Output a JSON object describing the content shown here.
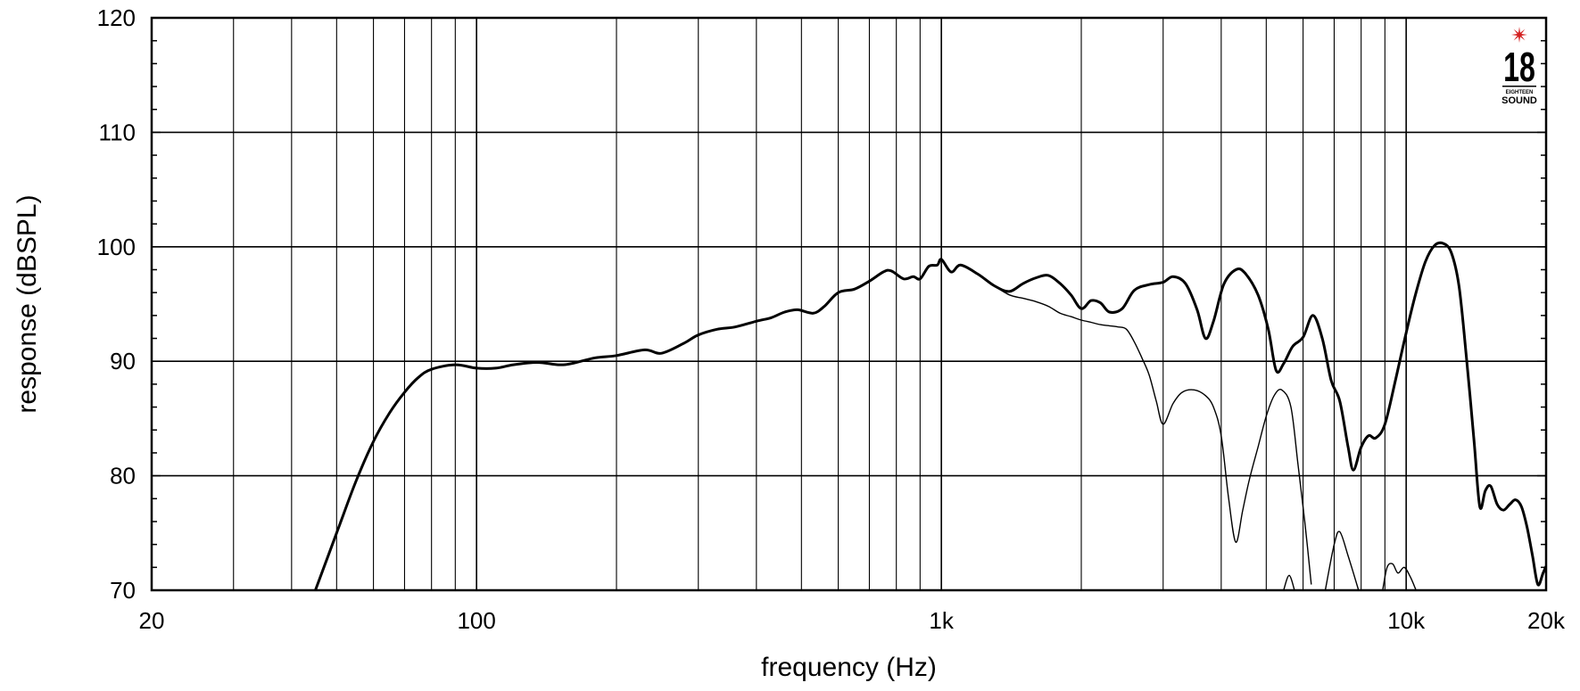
{
  "chart_data": {
    "type": "line",
    "xlabel": "frequency (Hz)",
    "ylabel": "response (dBSPL)",
    "xscale": "log",
    "xlim": [
      20,
      20000
    ],
    "ylim": [
      70,
      120
    ],
    "grid": true,
    "x_ticks": [
      {
        "value": 20,
        "label": "20"
      },
      {
        "value": 100,
        "label": "100"
      },
      {
        "value": 1000,
        "label": "1k"
      },
      {
        "value": 10000,
        "label": "10k"
      },
      {
        "value": 20000,
        "label": "20k"
      }
    ],
    "y_ticks": [
      {
        "value": 70,
        "label": "70"
      },
      {
        "value": 80,
        "label": "80"
      },
      {
        "value": 90,
        "label": "90"
      },
      {
        "value": 100,
        "label": "100"
      },
      {
        "value": 110,
        "label": "110"
      },
      {
        "value": 120,
        "label": "120"
      }
    ],
    "series": [
      {
        "style": "thick",
        "points": [
          [
            45,
            70
          ],
          [
            50,
            75
          ],
          [
            55,
            79.5
          ],
          [
            60,
            83
          ],
          [
            65,
            85.5
          ],
          [
            70,
            87.3
          ],
          [
            75,
            88.6
          ],
          [
            80,
            89.3
          ],
          [
            90,
            89.7
          ],
          [
            100,
            89.4
          ],
          [
            110,
            89.4
          ],
          [
            120,
            89.7
          ],
          [
            135,
            89.9
          ],
          [
            150,
            89.7
          ],
          [
            160,
            89.8
          ],
          [
            180,
            90.3
          ],
          [
            200,
            90.5
          ],
          [
            230,
            91
          ],
          [
            250,
            90.7
          ],
          [
            280,
            91.6
          ],
          [
            300,
            92.3
          ],
          [
            330,
            92.8
          ],
          [
            360,
            93
          ],
          [
            400,
            93.5
          ],
          [
            430,
            93.8
          ],
          [
            460,
            94.3
          ],
          [
            490,
            94.5
          ],
          [
            530,
            94.2
          ],
          [
            560,
            94.8
          ],
          [
            600,
            96
          ],
          [
            650,
            96.3
          ],
          [
            700,
            97
          ],
          [
            750,
            97.8
          ],
          [
            780,
            97.9
          ],
          [
            830,
            97.2
          ],
          [
            870,
            97.4
          ],
          [
            900,
            97.2
          ],
          [
            940,
            98.3
          ],
          [
            980,
            98.4
          ],
          [
            1000,
            98.9
          ],
          [
            1050,
            97.8
          ],
          [
            1100,
            98.4
          ],
          [
            1200,
            97.6
          ],
          [
            1300,
            96.6
          ],
          [
            1400,
            96.1
          ],
          [
            1500,
            96.8
          ],
          [
            1600,
            97.3
          ],
          [
            1700,
            97.5
          ],
          [
            1800,
            96.8
          ],
          [
            1900,
            95.8
          ],
          [
            2000,
            94.6
          ],
          [
            2100,
            95.3
          ],
          [
            2200,
            95.1
          ],
          [
            2300,
            94.3
          ],
          [
            2450,
            94.6
          ],
          [
            2600,
            96.2
          ],
          [
            2800,
            96.7
          ],
          [
            3000,
            96.9
          ],
          [
            3150,
            97.4
          ],
          [
            3350,
            96.8
          ],
          [
            3550,
            94.5
          ],
          [
            3700,
            92
          ],
          [
            3850,
            93.5
          ],
          [
            4050,
            96.7
          ],
          [
            4300,
            98
          ],
          [
            4500,
            97.7
          ],
          [
            4800,
            95.8
          ],
          [
            5050,
            92.8
          ],
          [
            5250,
            89.2
          ],
          [
            5450,
            89.8
          ],
          [
            5700,
            91.3
          ],
          [
            6000,
            92.1
          ],
          [
            6300,
            94
          ],
          [
            6600,
            92
          ],
          [
            6900,
            88.3
          ],
          [
            7200,
            86.5
          ],
          [
            7500,
            82.5
          ],
          [
            7700,
            80.5
          ],
          [
            8000,
            82.5
          ],
          [
            8300,
            83.5
          ],
          [
            8600,
            83.3
          ],
          [
            9000,
            84.5
          ],
          [
            9500,
            88.5
          ],
          [
            10000,
            92.5
          ],
          [
            10500,
            96
          ],
          [
            11000,
            98.7
          ],
          [
            11500,
            100.1
          ],
          [
            12000,
            100.3
          ],
          [
            12500,
            99.5
          ],
          [
            13000,
            96.5
          ],
          [
            13500,
            90
          ],
          [
            14000,
            83
          ],
          [
            14400,
            77.3
          ],
          [
            14800,
            78.7
          ],
          [
            15200,
            79.1
          ],
          [
            15700,
            77.5
          ],
          [
            16200,
            77
          ],
          [
            16700,
            77.5
          ],
          [
            17200,
            77.9
          ],
          [
            17700,
            77.3
          ],
          [
            18200,
            75.5
          ],
          [
            18700,
            73
          ],
          [
            19200,
            70.5
          ],
          [
            19700,
            71.5
          ],
          [
            20000,
            72.1
          ]
        ]
      },
      {
        "style": "thin",
        "points": [
          [
            1300,
            96.6
          ],
          [
            1400,
            95.8
          ],
          [
            1500,
            95.5
          ],
          [
            1600,
            95.2
          ],
          [
            1700,
            94.8
          ],
          [
            1800,
            94.2
          ],
          [
            1900,
            93.9
          ],
          [
            2000,
            93.6
          ],
          [
            2100,
            93.4
          ],
          [
            2200,
            93.2
          ],
          [
            2300,
            93.1
          ],
          [
            2400,
            93
          ],
          [
            2500,
            92.8
          ],
          [
            2600,
            91.7
          ],
          [
            2700,
            90.3
          ],
          [
            2800,
            88.8
          ],
          [
            2900,
            86.5
          ],
          [
            3000,
            84.5
          ],
          [
            3150,
            86.3
          ],
          [
            3300,
            87.3
          ],
          [
            3500,
            87.5
          ],
          [
            3700,
            87
          ],
          [
            3850,
            86
          ],
          [
            4000,
            83.5
          ],
          [
            4150,
            78
          ],
          [
            4300,
            74.2
          ],
          [
            4450,
            77
          ],
          [
            4600,
            79.7
          ],
          [
            4800,
            82.5
          ],
          [
            5000,
            85.2
          ],
          [
            5200,
            87
          ],
          [
            5400,
            87.5
          ],
          [
            5650,
            86
          ],
          [
            5850,
            81
          ],
          [
            6050,
            76
          ],
          [
            6250,
            70.5
          ]
        ]
      }
    ],
    "logo_text": [
      "18",
      "EIGHTEEN",
      "SOUND"
    ],
    "colors": {
      "line": "#000000",
      "grid": "#000000",
      "logo_accent": "#d42020"
    }
  }
}
